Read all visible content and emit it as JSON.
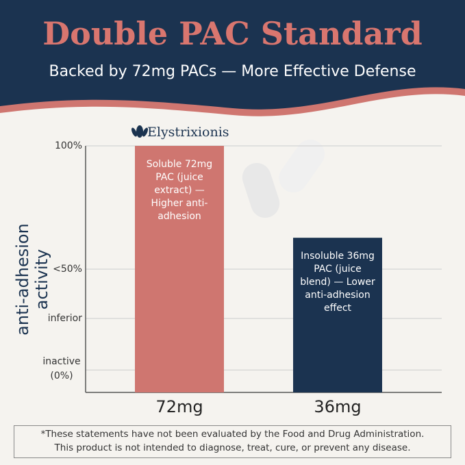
{
  "header": {
    "title": "Double PAC Standard",
    "subtitle": "Backed by 72mg PACs — More Effective Defense"
  },
  "brand": "Elystrixionis",
  "chart_data": {
    "type": "bar",
    "y_label": "anti-adhesion activity",
    "categories": [
      "72mg",
      "36mg"
    ],
    "values": [
      100,
      59
    ],
    "bar_labels": [
      "Soluble 72mg PAC (juice extract) — Higher anti-adhesion",
      "Insoluble 36mg PAC (juice blend) — Lower anti-adhesion effect"
    ],
    "colors": [
      "#cf7670",
      "#1b3350"
    ],
    "ylim": [
      -10,
      100
    ],
    "yticks": [
      {
        "value": 100,
        "label": "100%"
      },
      {
        "value": 45,
        "label": "<50%"
      },
      {
        "value": 23,
        "label": "inferior"
      },
      {
        "value": 0,
        "label": "inactive (0%)"
      }
    ],
    "grid": true
  },
  "footer": {
    "lines": [
      "*These statements have not been evaluated by the Food and Drug Administration.",
      "This product is not intended to diagnose, treat, cure, or prevent any disease."
    ]
  }
}
